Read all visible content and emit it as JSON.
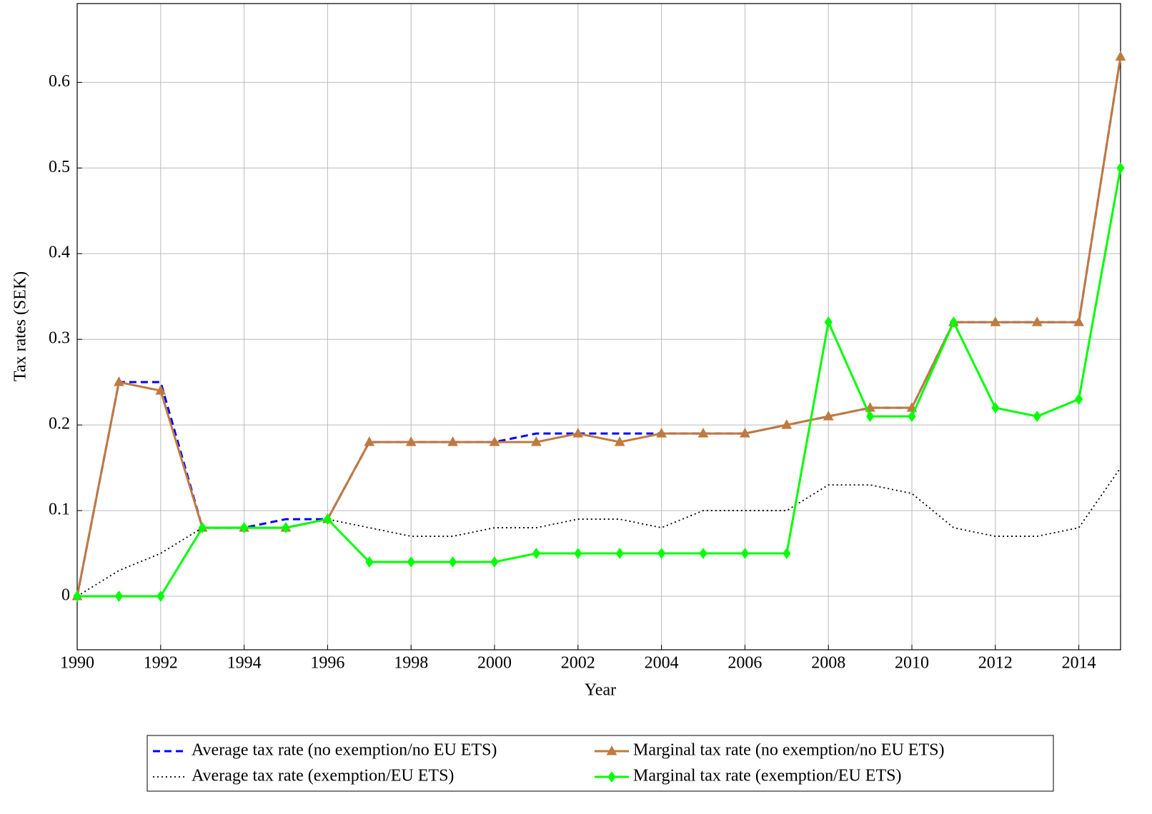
{
  "chart_data": {
    "type": "line",
    "x_label": "Year",
    "y_label": "Tax rates (SEK)",
    "x": [
      1990,
      1991,
      1992,
      1993,
      1994,
      1995,
      1996,
      1997,
      1998,
      1999,
      2000,
      2001,
      2002,
      2003,
      2004,
      2005,
      2006,
      2007,
      2008,
      2009,
      2010,
      2011,
      2012,
      2013,
      2014,
      2015
    ],
    "series": [
      {
        "name": "Average tax rate (no exemption/no EU ETS)",
        "color": "#0000ff",
        "dash": "dashed",
        "marker": "none",
        "values": [
          0,
          0.25,
          0.25,
          0.08,
          0.08,
          0.09,
          0.09,
          0.18,
          0.18,
          0.18,
          0.18,
          0.19,
          0.19,
          0.19,
          0.19,
          0.19,
          0.19,
          0.2,
          0.21,
          0.22,
          0.22,
          0.32,
          0.32,
          0.32,
          0.32,
          0.63
        ]
      },
      {
        "name": "Marginal tax rate (no exemption/no EU ETS)",
        "color": "#bf7a40",
        "dash": "solid",
        "marker": "triangle",
        "values": [
          0,
          0.25,
          0.24,
          0.08,
          0.08,
          0.08,
          0.09,
          0.18,
          0.18,
          0.18,
          0.18,
          0.18,
          0.19,
          0.18,
          0.19,
          0.19,
          0.19,
          0.2,
          0.21,
          0.22,
          0.22,
          0.32,
          0.32,
          0.32,
          0.32,
          0.63
        ]
      },
      {
        "name": "Average tax rate (exemption/EU ETS)",
        "color": "#000000",
        "dash": "dotted",
        "marker": "none",
        "values": [
          0,
          0.03,
          0.05,
          0.08,
          0.08,
          0.08,
          0.09,
          0.08,
          0.07,
          0.07,
          0.08,
          0.08,
          0.09,
          0.09,
          0.08,
          0.1,
          0.1,
          0.1,
          0.13,
          0.13,
          0.12,
          0.08,
          0.07,
          0.07,
          0.08,
          0.15
        ]
      },
      {
        "name": "Marginal tax rate (exemption/EU ETS)",
        "color": "#00ff00",
        "dash": "solid",
        "marker": "diamond",
        "values": [
          0,
          0,
          0,
          0.08,
          0.08,
          0.08,
          0.09,
          0.04,
          0.04,
          0.04,
          0.04,
          0.05,
          0.05,
          0.05,
          0.05,
          0.05,
          0.05,
          0.05,
          0.32,
          0.21,
          0.21,
          0.32,
          0.22,
          0.21,
          0.23,
          0.5
        ]
      }
    ],
    "xlim": [
      1990,
      2015
    ],
    "ylim": [
      -0.0625,
      0.692
    ],
    "xticks": [
      1990,
      1992,
      1994,
      1996,
      1998,
      2000,
      2002,
      2004,
      2006,
      2008,
      2010,
      2012,
      2014
    ],
    "yticks": [
      0,
      0.1,
      0.2,
      0.3,
      0.4,
      0.5,
      0.6
    ],
    "grid": true,
    "legend": "bottom"
  }
}
